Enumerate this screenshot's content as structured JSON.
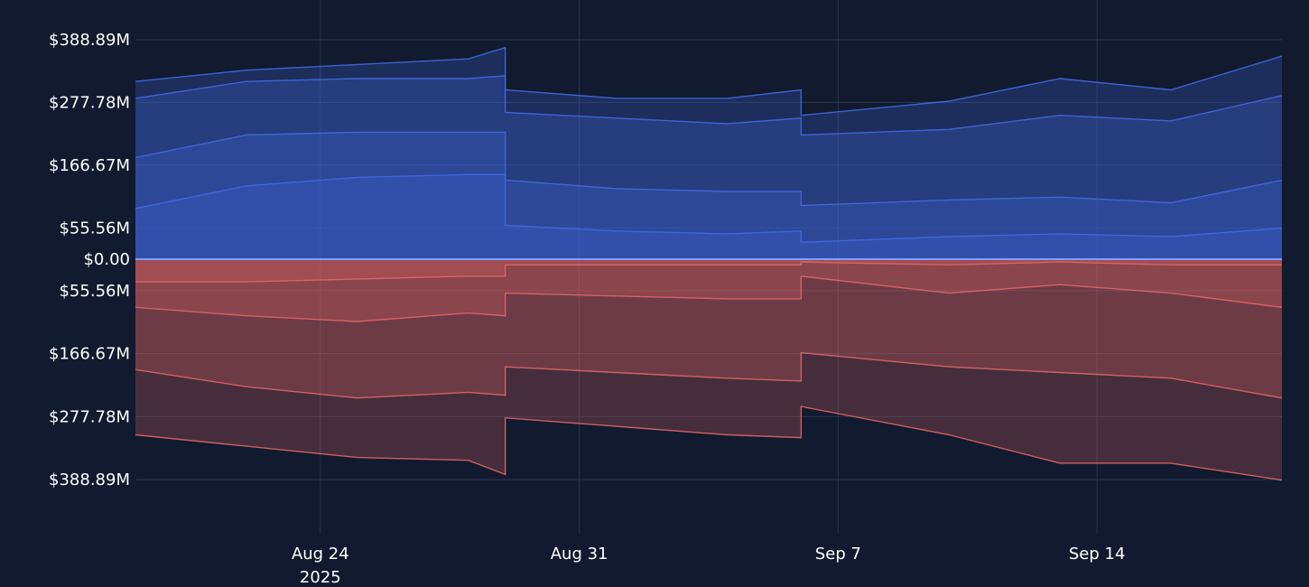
{
  "chart_data": {
    "type": "area",
    "title": "",
    "xlabel": "",
    "ylabel": "",
    "x_range": [
      "2025-08-19",
      "2025-09-19"
    ],
    "y_range_millions": [
      -388.89,
      388.89
    ],
    "x_ticks": [
      {
        "date": "2025-08-24",
        "label": "Aug 24",
        "sublabel": "2025"
      },
      {
        "date": "2025-08-31",
        "label": "Aug 31"
      },
      {
        "date": "2025-09-07",
        "label": "Sep 7"
      },
      {
        "date": "2025-09-14",
        "label": "Sep 14"
      }
    ],
    "y_ticks": [
      {
        "value": 388.89,
        "label": "$388.89M"
      },
      {
        "value": 277.78,
        "label": "$277.78M"
      },
      {
        "value": 166.67,
        "label": "$166.67M"
      },
      {
        "value": 55.56,
        "label": "$55.56M"
      },
      {
        "value": 0,
        "label": "$0.00"
      },
      {
        "value": -55.56,
        "label": "$55.56M"
      },
      {
        "value": -166.67,
        "label": "$166.67M"
      },
      {
        "value": -277.78,
        "label": "$277.78M"
      },
      {
        "value": -388.89,
        "label": "$388.89M"
      }
    ],
    "grid": true,
    "colors": {
      "positive": "#4169e1",
      "negative": "#e06666",
      "background": "#111a2e",
      "grid": "#2a3552"
    },
    "series": [
      {
        "side": "positive",
        "points": [
          [
            "2025-08-19",
            315
          ],
          [
            "2025-08-22",
            335
          ],
          [
            "2025-08-25",
            345
          ],
          [
            "2025-08-28",
            355
          ],
          [
            "2025-08-29",
            375
          ],
          [
            "2025-08-29",
            300
          ],
          [
            "2025-09-01",
            285
          ],
          [
            "2025-09-04",
            285
          ],
          [
            "2025-09-06",
            300
          ],
          [
            "2025-09-06",
            255
          ],
          [
            "2025-09-10",
            280
          ],
          [
            "2025-09-13",
            320
          ],
          [
            "2025-09-16",
            300
          ],
          [
            "2025-09-19",
            360
          ]
        ]
      },
      {
        "side": "positive",
        "points": [
          [
            "2025-08-19",
            285
          ],
          [
            "2025-08-22",
            315
          ],
          [
            "2025-08-25",
            320
          ],
          [
            "2025-08-28",
            320
          ],
          [
            "2025-08-29",
            325
          ],
          [
            "2025-08-29",
            260
          ],
          [
            "2025-09-01",
            250
          ],
          [
            "2025-09-04",
            240
          ],
          [
            "2025-09-06",
            250
          ],
          [
            "2025-09-06",
            220
          ],
          [
            "2025-09-10",
            230
          ],
          [
            "2025-09-13",
            255
          ],
          [
            "2025-09-16",
            245
          ],
          [
            "2025-09-19",
            290
          ]
        ]
      },
      {
        "side": "positive",
        "points": [
          [
            "2025-08-19",
            180
          ],
          [
            "2025-08-22",
            220
          ],
          [
            "2025-08-25",
            225
          ],
          [
            "2025-08-28",
            225
          ],
          [
            "2025-08-29",
            225
          ],
          [
            "2025-08-29",
            140
          ],
          [
            "2025-09-01",
            125
          ],
          [
            "2025-09-04",
            120
          ],
          [
            "2025-09-06",
            120
          ],
          [
            "2025-09-06",
            95
          ],
          [
            "2025-09-10",
            105
          ],
          [
            "2025-09-13",
            110
          ],
          [
            "2025-09-16",
            100
          ],
          [
            "2025-09-19",
            140
          ]
        ]
      },
      {
        "side": "positive",
        "points": [
          [
            "2025-08-19",
            90
          ],
          [
            "2025-08-22",
            130
          ],
          [
            "2025-08-25",
            145
          ],
          [
            "2025-08-28",
            150
          ],
          [
            "2025-08-29",
            150
          ],
          [
            "2025-08-29",
            60
          ],
          [
            "2025-09-01",
            50
          ],
          [
            "2025-09-04",
            45
          ],
          [
            "2025-09-06",
            50
          ],
          [
            "2025-09-06",
            30
          ],
          [
            "2025-09-10",
            40
          ],
          [
            "2025-09-13",
            45
          ],
          [
            "2025-09-16",
            40
          ],
          [
            "2025-09-19",
            55
          ]
        ]
      },
      {
        "side": "negative",
        "points": [
          [
            "2025-08-19",
            -40
          ],
          [
            "2025-08-22",
            -40
          ],
          [
            "2025-08-25",
            -35
          ],
          [
            "2025-08-28",
            -30
          ],
          [
            "2025-08-29",
            -30
          ],
          [
            "2025-08-29",
            -10
          ],
          [
            "2025-09-01",
            -10
          ],
          [
            "2025-09-04",
            -10
          ],
          [
            "2025-09-06",
            -10
          ],
          [
            "2025-09-06",
            -5
          ],
          [
            "2025-09-10",
            -10
          ],
          [
            "2025-09-13",
            -5
          ],
          [
            "2025-09-16",
            -10
          ],
          [
            "2025-09-19",
            -10
          ]
        ]
      },
      {
        "side": "negative",
        "points": [
          [
            "2025-08-19",
            -85
          ],
          [
            "2025-08-22",
            -100
          ],
          [
            "2025-08-25",
            -110
          ],
          [
            "2025-08-28",
            -95
          ],
          [
            "2025-08-29",
            -100
          ],
          [
            "2025-08-29",
            -60
          ],
          [
            "2025-09-01",
            -65
          ],
          [
            "2025-09-04",
            -70
          ],
          [
            "2025-09-06",
            -70
          ],
          [
            "2025-09-06",
            -30
          ],
          [
            "2025-09-10",
            -60
          ],
          [
            "2025-09-13",
            -45
          ],
          [
            "2025-09-16",
            -60
          ],
          [
            "2025-09-19",
            -85
          ]
        ]
      },
      {
        "side": "negative",
        "points": [
          [
            "2025-08-19",
            -195
          ],
          [
            "2025-08-22",
            -225
          ],
          [
            "2025-08-25",
            -245
          ],
          [
            "2025-08-28",
            -235
          ],
          [
            "2025-08-29",
            -240
          ],
          [
            "2025-08-29",
            -190
          ],
          [
            "2025-09-01",
            -200
          ],
          [
            "2025-09-04",
            -210
          ],
          [
            "2025-09-06",
            -215
          ],
          [
            "2025-09-06",
            -165
          ],
          [
            "2025-09-10",
            -190
          ],
          [
            "2025-09-13",
            -200
          ],
          [
            "2025-09-16",
            -210
          ],
          [
            "2025-09-19",
            -245
          ]
        ]
      },
      {
        "side": "negative",
        "points": [
          [
            "2025-08-19",
            -310
          ],
          [
            "2025-08-22",
            -330
          ],
          [
            "2025-08-25",
            -350
          ],
          [
            "2025-08-28",
            -355
          ],
          [
            "2025-08-29",
            -380
          ],
          [
            "2025-08-29",
            -280
          ],
          [
            "2025-09-01",
            -295
          ],
          [
            "2025-09-04",
            -310
          ],
          [
            "2025-09-06",
            -315
          ],
          [
            "2025-09-06",
            -260
          ],
          [
            "2025-09-10",
            -310
          ],
          [
            "2025-09-13",
            -360
          ],
          [
            "2025-09-16",
            -360
          ],
          [
            "2025-09-19",
            -390
          ]
        ]
      }
    ]
  }
}
